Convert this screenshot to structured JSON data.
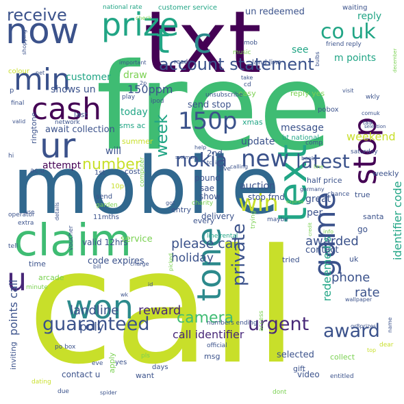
{
  "palette": {
    "yellowgreen": "#c8df2a",
    "teal": "#21a585",
    "green": "#3fbc73",
    "blue": "#31688e",
    "purple": "#482878",
    "dark": "#440154",
    "lime": "#7ad151",
    "slate": "#3b528b",
    "cyan": "#2c8a8c",
    "lightgreen": "#9dd93b"
  },
  "words": [
    {
      "text": "call",
      "color": "yellowgreen"
    },
    {
      "text": "free",
      "color": "green"
    },
    {
      "text": "txt",
      "color": "dark"
    },
    {
      "text": "mobile",
      "color": "blue"
    },
    {
      "text": "now",
      "color": "slate"
    },
    {
      "text": "claim",
      "color": "green"
    },
    {
      "text": "text",
      "color": "teal"
    },
    {
      "text": "prize",
      "color": "teal"
    },
    {
      "text": "stop",
      "color": "dark"
    },
    {
      "text": "ur",
      "color": "slate"
    },
    {
      "text": "won",
      "color": "cyan"
    },
    {
      "text": "cash",
      "color": "dark"
    },
    {
      "text": "min",
      "color": "slate"
    },
    {
      "text": "t",
      "color": "teal"
    },
    {
      "text": "c",
      "color": "cyan"
    },
    {
      "text": "tone",
      "color": "cyan"
    },
    {
      "text": "game",
      "color": "slate"
    },
    {
      "text": "150p",
      "color": "slate"
    },
    {
      "text": "u",
      "color": "purple"
    },
    {
      "text": "new",
      "color": "slate"
    },
    {
      "text": "win",
      "color": "yellowgreen"
    },
    {
      "text": "nokia",
      "color": "slate"
    },
    {
      "text": "latest",
      "color": "slate"
    },
    {
      "text": "account statement",
      "color": "slate"
    },
    {
      "text": "receive",
      "color": "slate"
    },
    {
      "text": "co uk",
      "color": "teal"
    },
    {
      "text": "guaranteed",
      "color": "slate"
    },
    {
      "text": "urgent",
      "color": "purple"
    },
    {
      "text": "award",
      "color": "slate"
    },
    {
      "text": "private",
      "color": "slate"
    },
    {
      "text": "camera",
      "color": "green"
    },
    {
      "text": "week",
      "color": "teal"
    },
    {
      "text": "number",
      "color": "yellowgreen"
    },
    {
      "text": "please call",
      "color": "slate"
    },
    {
      "text": "landline",
      "color": "slate"
    },
    {
      "text": "reward",
      "color": "purple"
    },
    {
      "text": "awarded",
      "color": "slate"
    },
    {
      "text": "holiday",
      "color": "slate"
    },
    {
      "text": "poly",
      "color": "slate"
    },
    {
      "text": "points call",
      "color": "slate"
    },
    {
      "text": "call identifier",
      "color": "purple"
    },
    {
      "text": "rate",
      "color": "slate"
    },
    {
      "text": "phone",
      "color": "slate"
    },
    {
      "text": "redeemed s",
      "color": "teal"
    },
    {
      "text": "identifier code",
      "color": "teal"
    },
    {
      "text": "weekend",
      "color": "yellowgreen"
    },
    {
      "text": "150ppm",
      "color": "slate"
    },
    {
      "text": "shows un",
      "color": "slate"
    },
    {
      "text": "customer",
      "color": "teal"
    },
    {
      "text": "draw",
      "color": "lime"
    },
    {
      "text": "m points",
      "color": "teal"
    },
    {
      "text": "reply",
      "color": "teal"
    },
    {
      "text": "un redeemed",
      "color": "slate"
    },
    {
      "text": "see",
      "color": "teal"
    },
    {
      "text": "today",
      "color": "teal"
    },
    {
      "text": "message",
      "color": "slate"
    },
    {
      "text": "update",
      "color": "slate"
    },
    {
      "text": "send stop",
      "color": "slate"
    },
    {
      "text": "await collection",
      "color": "slate"
    },
    {
      "text": "attempt",
      "color": "dark"
    },
    {
      "text": "will",
      "color": "slate"
    },
    {
      "text": "auction",
      "color": "slate"
    },
    {
      "text": "per",
      "color": "slate"
    },
    {
      "text": "great",
      "color": "slate"
    },
    {
      "text": "code expires",
      "color": "slate"
    },
    {
      "text": "service",
      "color": "lime"
    },
    {
      "text": "contact",
      "color": "slate"
    },
    {
      "text": "selected",
      "color": "slate"
    },
    {
      "text": "contact u",
      "color": "slate"
    },
    {
      "text": "video",
      "color": "slate"
    },
    {
      "text": "collect",
      "color": "lime"
    },
    {
      "text": "sms ac",
      "color": "teal"
    },
    {
      "text": "summer",
      "color": "yellowgreen"
    },
    {
      "text": "xmas",
      "color": "teal"
    },
    {
      "text": "2nd",
      "color": "slate"
    },
    {
      "text": "ringtone",
      "color": "slate"
    },
    {
      "text": "cost",
      "color": "slate"
    },
    {
      "text": "sae",
      "color": "slate"
    },
    {
      "text": "show",
      "color": "slate"
    },
    {
      "text": "pound",
      "color": "slate"
    },
    {
      "text": "stop frnd",
      "color": "slate"
    },
    {
      "text": "delivery",
      "color": "slate"
    },
    {
      "text": "valid 12hrs",
      "color": "slate"
    },
    {
      "text": "tried",
      "color": "slate"
    },
    {
      "text": "go",
      "color": "slate"
    },
    {
      "text": "apply",
      "color": "lime"
    },
    {
      "text": "time",
      "color": "slate"
    },
    {
      "text": "arcade",
      "color": "lime"
    },
    {
      "text": "offer",
      "color": "yellowgreen"
    },
    {
      "text": "uk",
      "color": "slate"
    },
    {
      "text": "entry",
      "color": "slate"
    },
    {
      "text": "every",
      "color": "slate"
    },
    {
      "text": "santa",
      "color": "slate"
    },
    {
      "text": "half price",
      "color": "slate"
    },
    {
      "text": "true",
      "color": "slate"
    },
    {
      "text": "weekly",
      "color": "slate"
    },
    {
      "text": "gift",
      "color": "slate"
    },
    {
      "text": "msg",
      "color": "slate"
    },
    {
      "text": "want",
      "color": "slate"
    },
    {
      "text": "yes",
      "color": "slate"
    },
    {
      "text": "colour",
      "color": "yellowgreen"
    },
    {
      "text": "last",
      "color": "slate"
    },
    {
      "text": "easy",
      "color": "lime"
    },
    {
      "text": "reply yes",
      "color": "lime"
    },
    {
      "text": "pobox",
      "color": "slate"
    },
    {
      "text": "bt national",
      "color": "teal"
    },
    {
      "text": "comp",
      "color": "slate"
    },
    {
      "text": "saturday",
      "color": "slate"
    },
    {
      "text": "wkly",
      "color": "slate"
    },
    {
      "text": "comuk",
      "color": "slate"
    },
    {
      "text": "talk",
      "color": "slate"
    },
    {
      "text": "friend reply",
      "color": "slate"
    },
    {
      "text": "waiting",
      "color": "slate"
    },
    {
      "text": "land line",
      "color": "slate"
    },
    {
      "text": "mob",
      "color": "slate"
    },
    {
      "text": "music",
      "color": "lime"
    },
    {
      "text": "ready",
      "color": "slate"
    },
    {
      "text": "national rate",
      "color": "teal"
    },
    {
      "text": "customer service",
      "color": "teal"
    },
    {
      "text": "play",
      "color": "slate"
    },
    {
      "text": "ipod",
      "color": "slate"
    },
    {
      "text": "2p",
      "color": "slate"
    },
    {
      "text": "unsubscribe",
      "color": "slate"
    },
    {
      "text": "cd",
      "color": "slate"
    },
    {
      "text": "network",
      "color": "slate"
    },
    {
      "text": "net",
      "color": "slate"
    },
    {
      "text": "final",
      "color": "slate"
    },
    {
      "text": "hi",
      "color": "slate"
    },
    {
      "text": "ac u",
      "color": "slate"
    },
    {
      "text": "1st",
      "color": "slate"
    },
    {
      "text": "10p",
      "color": "yellowgreen"
    },
    {
      "text": "send",
      "color": "slate"
    },
    {
      "text": "11mths",
      "color": "slate"
    },
    {
      "text": "garden",
      "color": "lime"
    },
    {
      "text": "computer",
      "color": "lime"
    },
    {
      "text": "charity",
      "color": "lime"
    },
    {
      "text": "give",
      "color": "slate"
    },
    {
      "text": "calling",
      "color": "slate"
    },
    {
      "text": "book",
      "color": "slate"
    },
    {
      "text": "chance",
      "color": "slate"
    },
    {
      "text": "germany",
      "color": "slate"
    },
    {
      "text": "line rental",
      "color": "teal"
    },
    {
      "text": "trying",
      "color": "lime"
    },
    {
      "text": "maybe",
      "color": "slate"
    },
    {
      "text": "info",
      "color": "lime"
    },
    {
      "text": "voucher",
      "color": "slate"
    },
    {
      "text": "operator",
      "color": "slate"
    },
    {
      "text": "extra",
      "color": "slate"
    },
    {
      "text": "tell",
      "color": "slate"
    },
    {
      "text": "minute",
      "color": "lime"
    },
    {
      "text": "bill",
      "color": "slate"
    },
    {
      "text": "charge",
      "color": "slate"
    },
    {
      "text": "picked",
      "color": "lime"
    },
    {
      "text": "id",
      "color": "slate"
    },
    {
      "text": "wk",
      "color": "slate"
    },
    {
      "text": "inviting",
      "color": "slate"
    },
    {
      "text": "po box",
      "color": "slate"
    },
    {
      "text": "dating",
      "color": "yellowgreen"
    },
    {
      "text": "due",
      "color": "slate"
    },
    {
      "text": "eve",
      "color": "slate"
    },
    {
      "text": "spider",
      "color": "slate"
    },
    {
      "text": "days",
      "color": "slate"
    },
    {
      "text": "pls",
      "color": "lime"
    },
    {
      "text": "official",
      "color": "slate"
    },
    {
      "text": "numbers ending",
      "color": "slate"
    },
    {
      "text": "access",
      "color": "lime"
    },
    {
      "text": "entitled",
      "color": "slate"
    },
    {
      "text": "dont",
      "color": "lime"
    },
    {
      "text": "wallpaper",
      "color": "slate"
    },
    {
      "text": "gr8prizes",
      "color": "slate"
    },
    {
      "text": "dear",
      "color": "yellowgreen"
    },
    {
      "text": "name",
      "color": "slate"
    },
    {
      "text": "check",
      "color": "lime"
    },
    {
      "text": "important",
      "color": "slate"
    },
    {
      "text": "shopping",
      "color": "slate"
    },
    {
      "text": "valid",
      "color": "slate"
    },
    {
      "text": "take",
      "color": "slate"
    },
    {
      "text": "bulbs",
      "color": "slate"
    },
    {
      "text": "visit",
      "color": "slate"
    },
    {
      "text": "selection",
      "color": "slate"
    },
    {
      "text": "december",
      "color": "lime"
    },
    {
      "text": "help",
      "color": "slate"
    },
    {
      "text": "scotman",
      "color": "slate"
    },
    {
      "text": "tc",
      "color": "slate"
    },
    {
      "text": "inc",
      "color": "slate"
    },
    {
      "text": "line",
      "color": "lime"
    },
    {
      "text": "got",
      "color": "slate"
    },
    {
      "text": "details",
      "color": "slate"
    },
    {
      "text": "use",
      "color": "slate"
    },
    {
      "text": "p",
      "color": "slate"
    },
    {
      "text": "expires",
      "color": "lime"
    },
    {
      "text": "credit",
      "color": "lime"
    },
    {
      "text": "top",
      "color": "yellowgreen"
    }
  ]
}
